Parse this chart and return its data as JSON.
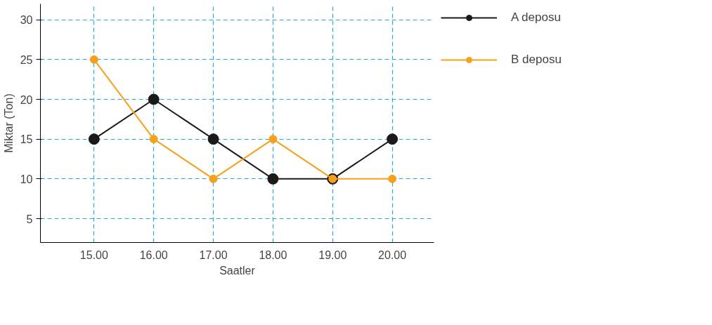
{
  "chart_data": {
    "type": "line",
    "xlabel": "Saatler",
    "ylabel": "Miktar (Ton)",
    "categories": [
      "15.00",
      "16.00",
      "17.00",
      "18.00",
      "19.00",
      "20.00"
    ],
    "series": [
      {
        "name": "A deposu",
        "color": "#1a1a1a",
        "values": [
          15,
          20,
          15,
          10,
          10,
          15
        ]
      },
      {
        "name": "B deposu",
        "color": "#f7a11a",
        "values": [
          25,
          15,
          10,
          15,
          10,
          10
        ]
      }
    ],
    "ylim": [
      2,
      32
    ],
    "yticks": [
      5,
      10,
      15,
      20,
      25,
      30
    ],
    "grid": true,
    "legend": "right",
    "marker": "circle",
    "line_style": "solid"
  }
}
